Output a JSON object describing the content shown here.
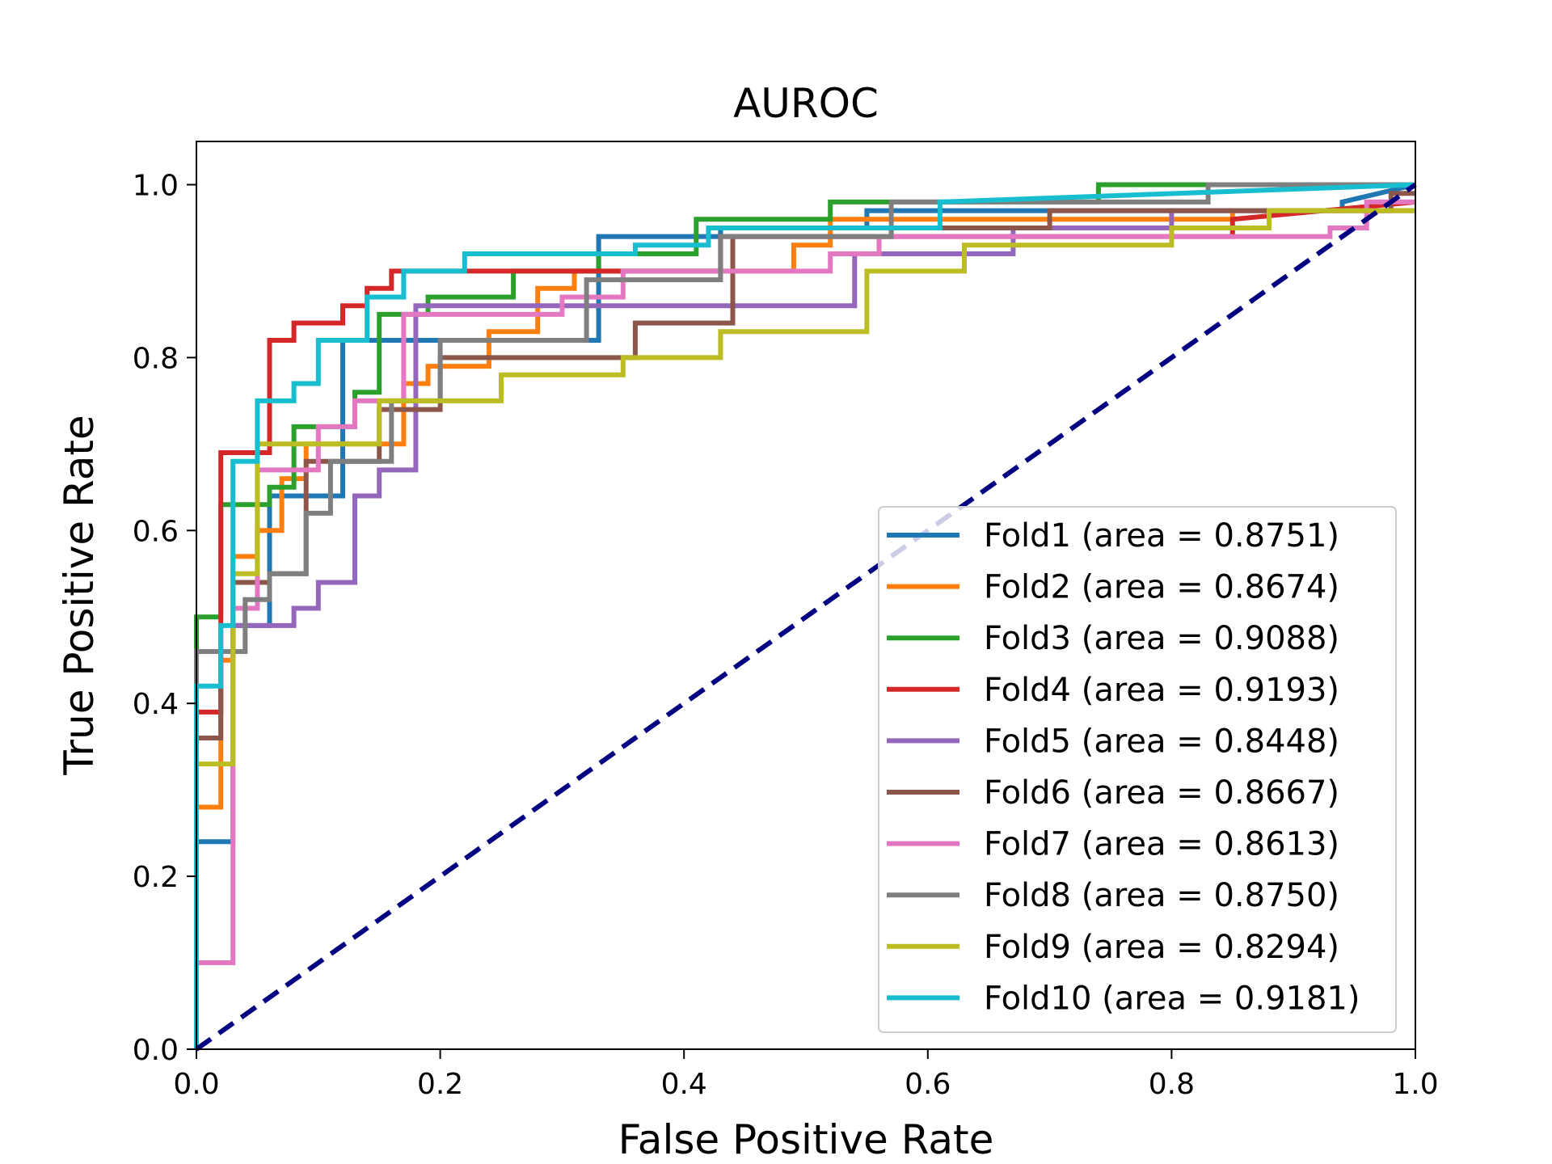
{
  "chart_data": {
    "type": "line",
    "title": "AUROC",
    "xlabel": "False Positive Rate",
    "ylabel": "True Positive Rate",
    "xlim": [
      0.0,
      1.0
    ],
    "ylim": [
      0.0,
      1.05
    ],
    "xticks": [
      "0.0",
      "0.2",
      "0.4",
      "0.6",
      "0.8",
      "1.0"
    ],
    "yticks": [
      "0.0",
      "0.2",
      "0.4",
      "0.6",
      "0.8",
      "1.0"
    ],
    "grid": false,
    "legend_position": "lower right",
    "diagonal": {
      "x": [
        0,
        1
      ],
      "y": [
        0,
        1
      ],
      "color": "#000080",
      "style": "dashed"
    },
    "series": [
      {
        "name": "Fold1 (area = 0.8751)",
        "color": "#1f77b4",
        "x": [
          0,
          0,
          0.03,
          0.03,
          0.06,
          0.06,
          0.12,
          0.12,
          0.33,
          0.33,
          0.43,
          0.43,
          0.55,
          0.55,
          0.94,
          0.94,
          1.0
        ],
        "y": [
          0,
          0.24,
          0.24,
          0.49,
          0.49,
          0.64,
          0.64,
          0.82,
          0.82,
          0.94,
          0.94,
          0.95,
          0.95,
          0.97,
          0.97,
          0.98,
          1.0
        ]
      },
      {
        "name": "Fold2 (area = 0.8674)",
        "color": "#ff7f0e",
        "x": [
          0,
          0,
          0.02,
          0.02,
          0.03,
          0.03,
          0.05,
          0.05,
          0.07,
          0.07,
          0.09,
          0.09,
          0.12,
          0.12,
          0.17,
          0.17,
          0.19,
          0.19,
          0.24,
          0.24,
          0.28,
          0.28,
          0.31,
          0.31,
          0.49,
          0.49,
          0.52,
          0.52,
          0.85,
          0.85,
          1.0
        ],
        "y": [
          0,
          0.28,
          0.28,
          0.45,
          0.45,
          0.57,
          0.57,
          0.6,
          0.6,
          0.66,
          0.66,
          0.7,
          0.7,
          0.7,
          0.7,
          0.77,
          0.77,
          0.79,
          0.79,
          0.83,
          0.83,
          0.88,
          0.88,
          0.9,
          0.9,
          0.93,
          0.93,
          0.96,
          0.96,
          0.97,
          0.97
        ]
      },
      {
        "name": "Fold3 (area = 0.9088)",
        "color": "#2ca02c",
        "x": [
          0,
          0,
          0.02,
          0.02,
          0.06,
          0.06,
          0.08,
          0.08,
          0.13,
          0.13,
          0.15,
          0.15,
          0.19,
          0.19,
          0.26,
          0.26,
          0.33,
          0.33,
          0.41,
          0.41,
          0.52,
          0.52,
          0.74,
          0.74,
          1.0
        ],
        "y": [
          0,
          0.5,
          0.5,
          0.63,
          0.63,
          0.65,
          0.65,
          0.72,
          0.72,
          0.76,
          0.76,
          0.85,
          0.85,
          0.87,
          0.87,
          0.9,
          0.9,
          0.92,
          0.92,
          0.96,
          0.96,
          0.98,
          0.98,
          1.0,
          1.0
        ]
      },
      {
        "name": "Fold4 (area = 0.9193)",
        "color": "#d62728",
        "x": [
          0,
          0,
          0.02,
          0.02,
          0.06,
          0.06,
          0.08,
          0.08,
          0.12,
          0.12,
          0.14,
          0.14,
          0.16,
          0.16,
          0.43,
          0.43,
          0.85,
          0.85,
          1.0
        ],
        "y": [
          0,
          0.39,
          0.39,
          0.69,
          0.69,
          0.82,
          0.82,
          0.84,
          0.84,
          0.86,
          0.86,
          0.88,
          0.88,
          0.9,
          0.9,
          0.94,
          0.94,
          0.96,
          0.98
        ]
      },
      {
        "name": "Fold5 (area = 0.8448)",
        "color": "#9467bd",
        "x": [
          0,
          0,
          0.03,
          0.03,
          0.08,
          0.08,
          0.1,
          0.1,
          0.13,
          0.13,
          0.15,
          0.15,
          0.18,
          0.18,
          0.54,
          0.54,
          0.67,
          0.67,
          0.8,
          0.8,
          1.0
        ],
        "y": [
          0,
          0.46,
          0.46,
          0.49,
          0.49,
          0.51,
          0.51,
          0.54,
          0.54,
          0.64,
          0.64,
          0.67,
          0.67,
          0.86,
          0.86,
          0.92,
          0.92,
          0.95,
          0.95,
          0.97,
          0.97
        ]
      },
      {
        "name": "Fold6 (area = 0.8667)",
        "color": "#8c564b",
        "x": [
          0,
          0,
          0.02,
          0.02,
          0.03,
          0.03,
          0.06,
          0.06,
          0.09,
          0.09,
          0.15,
          0.15,
          0.2,
          0.2,
          0.36,
          0.36,
          0.44,
          0.44,
          0.57,
          0.57,
          0.7,
          0.7,
          0.98,
          0.98,
          1.0
        ],
        "y": [
          0,
          0.36,
          0.36,
          0.46,
          0.46,
          0.54,
          0.54,
          0.55,
          0.55,
          0.68,
          0.68,
          0.74,
          0.74,
          0.8,
          0.8,
          0.84,
          0.84,
          0.94,
          0.94,
          0.95,
          0.95,
          0.97,
          0.97,
          0.99,
          0.99
        ]
      },
      {
        "name": "Fold7 (area = 0.8613)",
        "color": "#e377c2",
        "x": [
          0,
          0,
          0.03,
          0.03,
          0.05,
          0.05,
          0.1,
          0.1,
          0.13,
          0.13,
          0.17,
          0.17,
          0.3,
          0.3,
          0.35,
          0.35,
          0.52,
          0.52,
          0.56,
          0.56,
          0.93,
          0.93,
          0.96,
          0.96,
          1.0
        ],
        "y": [
          0,
          0.1,
          0.1,
          0.51,
          0.51,
          0.67,
          0.67,
          0.72,
          0.72,
          0.75,
          0.75,
          0.85,
          0.85,
          0.87,
          0.87,
          0.9,
          0.9,
          0.92,
          0.92,
          0.94,
          0.94,
          0.95,
          0.95,
          0.98,
          0.98
        ]
      },
      {
        "name": "Fold8 (area = 0.8750)",
        "color": "#7f7f7f",
        "x": [
          0,
          0,
          0.04,
          0.04,
          0.06,
          0.06,
          0.09,
          0.09,
          0.11,
          0.11,
          0.16,
          0.16,
          0.2,
          0.2,
          0.32,
          0.32,
          0.43,
          0.43,
          0.57,
          0.57,
          0.83,
          0.83,
          1.0
        ],
        "y": [
          0,
          0.46,
          0.46,
          0.52,
          0.52,
          0.55,
          0.55,
          0.62,
          0.62,
          0.68,
          0.68,
          0.75,
          0.75,
          0.82,
          0.82,
          0.89,
          0.89,
          0.94,
          0.94,
          0.98,
          0.98,
          1.0,
          1.0
        ]
      },
      {
        "name": "Fold9 (area = 0.8294)",
        "color": "#bcbd22",
        "x": [
          0,
          0,
          0.03,
          0.03,
          0.05,
          0.05,
          0.15,
          0.15,
          0.25,
          0.25,
          0.35,
          0.35,
          0.43,
          0.43,
          0.55,
          0.55,
          0.63,
          0.63,
          0.8,
          0.8,
          0.88,
          0.88,
          1.0
        ],
        "y": [
          0,
          0.33,
          0.33,
          0.55,
          0.55,
          0.7,
          0.7,
          0.75,
          0.75,
          0.78,
          0.78,
          0.8,
          0.8,
          0.83,
          0.83,
          0.9,
          0.9,
          0.93,
          0.93,
          0.95,
          0.95,
          0.97,
          0.97
        ]
      },
      {
        "name": "Fold10 (area = 0.9181)",
        "color": "#17becf",
        "x": [
          0,
          0,
          0.02,
          0.02,
          0.03,
          0.03,
          0.05,
          0.05,
          0.08,
          0.08,
          0.1,
          0.1,
          0.14,
          0.14,
          0.17,
          0.17,
          0.22,
          0.22,
          0.36,
          0.36,
          0.42,
          0.42,
          0.61,
          0.61,
          1.0
        ],
        "y": [
          0,
          0.42,
          0.42,
          0.49,
          0.49,
          0.68,
          0.68,
          0.75,
          0.75,
          0.77,
          0.77,
          0.82,
          0.82,
          0.87,
          0.87,
          0.9,
          0.9,
          0.92,
          0.92,
          0.93,
          0.93,
          0.95,
          0.95,
          0.98,
          1.0
        ]
      }
    ]
  }
}
